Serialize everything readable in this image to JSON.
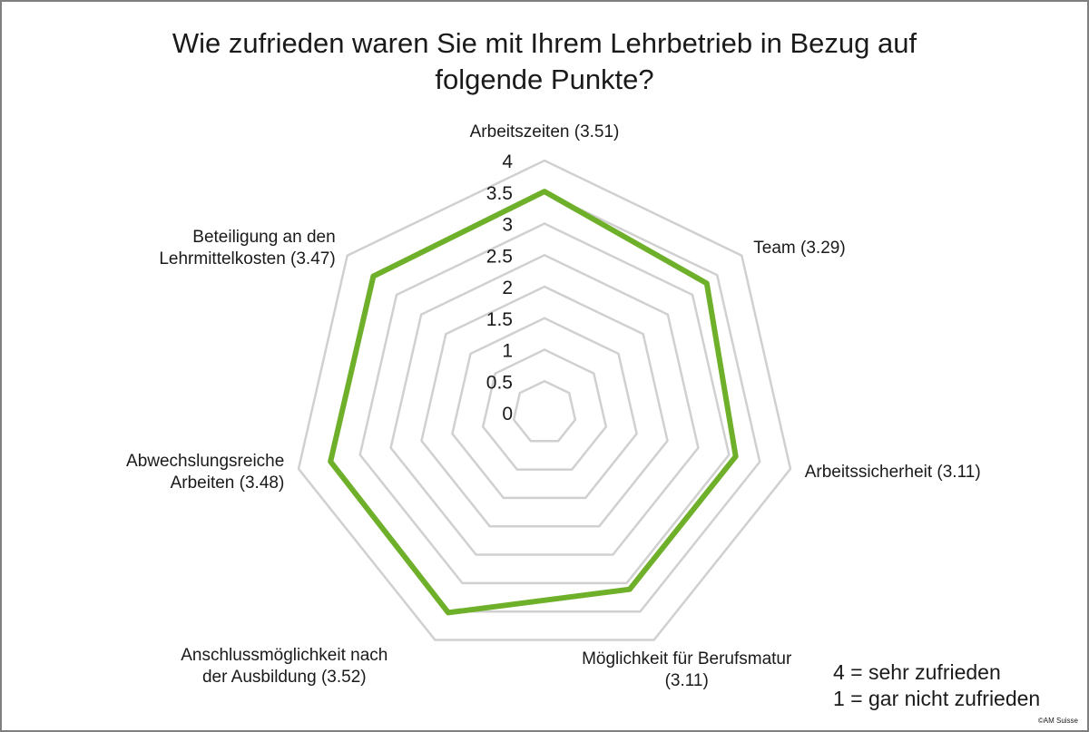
{
  "chart_data": {
    "type": "radar",
    "title_lines": [
      "Wie zufrieden waren Sie mit Ihrem Lehrbetrieb in Bezug auf",
      "folgende Punkte?"
    ],
    "axes": [
      {
        "label_lines": [
          "Arbeitszeiten (3.51)"
        ],
        "value": 3.51
      },
      {
        "label_lines": [
          "Team (3.29)"
        ],
        "value": 3.29
      },
      {
        "label_lines": [
          "Arbeitssicherheit (3.11)"
        ],
        "value": 3.11
      },
      {
        "label_lines": [
          "Möglichkeit für Berufsmatur",
          "(3.11)"
        ],
        "value": 3.11
      },
      {
        "label_lines": [
          "Anschlussmöglichkeit nach",
          "der Ausbildung (3.52)"
        ],
        "value": 3.52
      },
      {
        "label_lines": [
          "Abwechslungsreiche",
          "Arbeiten (3.48)"
        ],
        "value": 3.48
      },
      {
        "label_lines": [
          "Beteiligung an den",
          "Lehrmittelkosten (3.47)"
        ],
        "value": 3.47
      }
    ],
    "ticks": [
      "0",
      "0.5",
      "1",
      "1.5",
      "2",
      "2.5",
      "3",
      "3.5",
      "4"
    ],
    "tick_values": [
      0,
      0.5,
      1,
      1.5,
      2,
      2.5,
      3,
      3.5,
      4
    ],
    "range": [
      0,
      4
    ],
    "grid": true,
    "series_color": "#6fb02b",
    "grid_color": "#d0d0d0"
  },
  "legend": {
    "line1": "4 = sehr zufrieden",
    "line2": "1 = gar nicht zufrieden"
  },
  "copyright": "©AM Suisse"
}
